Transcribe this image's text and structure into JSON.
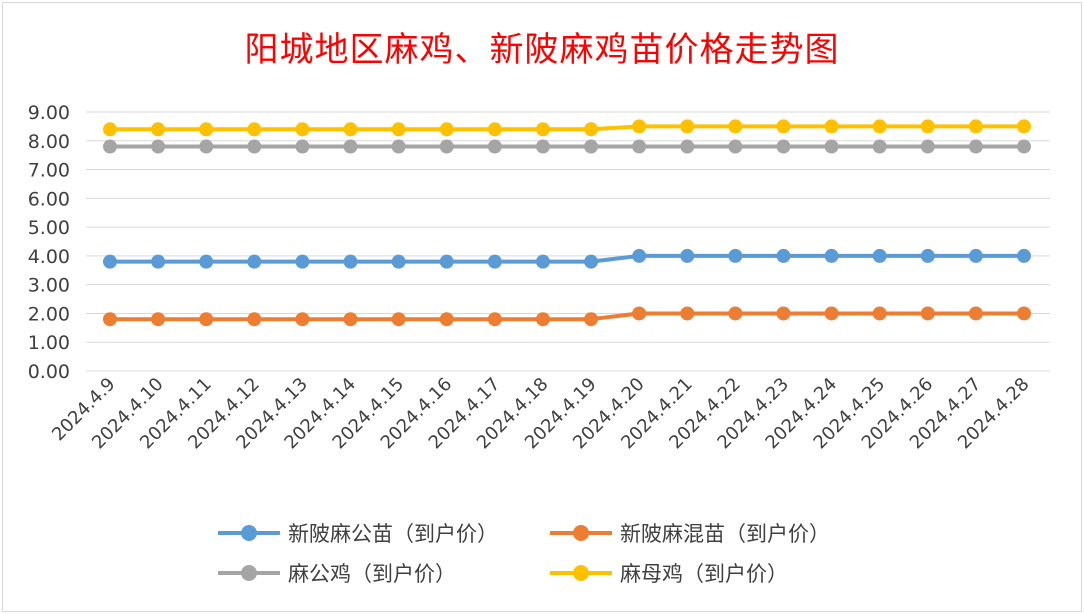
{
  "chart_data": {
    "type": "line",
    "title": "阳城地区麻鸡、新陂麻鸡苗价格走势图",
    "xlabel": "",
    "ylabel": "",
    "ylim": [
      0,
      9
    ],
    "yticks": [
      "0.00",
      "1.00",
      "2.00",
      "3.00",
      "4.00",
      "5.00",
      "6.00",
      "7.00",
      "8.00",
      "9.00"
    ],
    "categories": [
      "2024.4.9",
      "2024.4.10",
      "2024.4.11",
      "2024.4.12",
      "2024.4.13",
      "2024.4.14",
      "2024.4.15",
      "2024.4.16",
      "2024.4.17",
      "2024.4.18",
      "2024.4.19",
      "2024.4.20",
      "2024.4.21",
      "2024.4.22",
      "2024.4.23",
      "2024.4.24",
      "2024.4.25",
      "2024.4.26",
      "2024.4.27",
      "2024.4.28"
    ],
    "series": [
      {
        "name": "新陂麻公苗（到户价）",
        "color": "#5b9bd5",
        "values": [
          3.8,
          3.8,
          3.8,
          3.8,
          3.8,
          3.8,
          3.8,
          3.8,
          3.8,
          3.8,
          3.8,
          4.0,
          4.0,
          4.0,
          4.0,
          4.0,
          4.0,
          4.0,
          4.0,
          4.0
        ]
      },
      {
        "name": "新陂麻混苗（到户价）",
        "color": "#ed7d31",
        "values": [
          1.8,
          1.8,
          1.8,
          1.8,
          1.8,
          1.8,
          1.8,
          1.8,
          1.8,
          1.8,
          1.8,
          2.0,
          2.0,
          2.0,
          2.0,
          2.0,
          2.0,
          2.0,
          2.0,
          2.0
        ]
      },
      {
        "name": "麻公鸡（到户价）",
        "color": "#a5a5a5",
        "values": [
          7.8,
          7.8,
          7.8,
          7.8,
          7.8,
          7.8,
          7.8,
          7.8,
          7.8,
          7.8,
          7.8,
          7.8,
          7.8,
          7.8,
          7.8,
          7.8,
          7.8,
          7.8,
          7.8,
          7.8
        ]
      },
      {
        "name": "麻母鸡（到户价）",
        "color": "#ffc000",
        "values": [
          8.4,
          8.4,
          8.4,
          8.4,
          8.4,
          8.4,
          8.4,
          8.4,
          8.4,
          8.4,
          8.4,
          8.5,
          8.5,
          8.5,
          8.5,
          8.5,
          8.5,
          8.5,
          8.5,
          8.5
        ]
      }
    ],
    "grid": true,
    "legend_position": "bottom"
  }
}
